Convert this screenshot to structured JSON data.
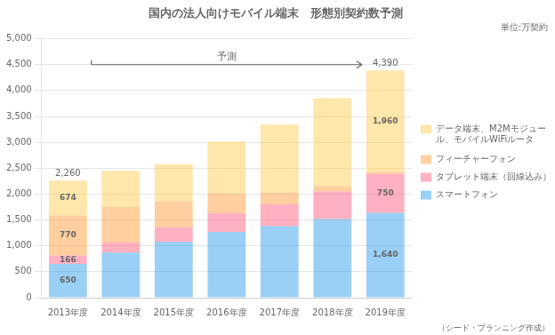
{
  "chart_data": {
    "type": "bar",
    "stacked": true,
    "title": "国内の法人向けモバイル端末　形態別契約数予測",
    "subtitle": "単位:万契約",
    "categories": [
      "2013年度",
      "2014年度",
      "2015年度",
      "2016年度",
      "2017年度",
      "2018年度",
      "2019年度"
    ],
    "series": [
      {
        "name": "スマートフォン",
        "values": [
          650,
          870,
          1080,
          1270,
          1380,
          1520,
          1640
        ],
        "value_labels": [
          "650",
          null,
          null,
          null,
          null,
          null,
          "1,640"
        ]
      },
      {
        "name": "タブレット端末（回線込み）",
        "values": [
          166,
          200,
          280,
          360,
          420,
          530,
          750
        ],
        "value_labels": [
          "166",
          null,
          null,
          null,
          null,
          null,
          "750"
        ]
      },
      {
        "name": "フィーチャーフォン",
        "values": [
          770,
          680,
          500,
          380,
          230,
          100,
          40
        ],
        "value_labels": [
          "770",
          null,
          null,
          null,
          null,
          null,
          null
        ]
      },
      {
        "name": "データ端末、M2Mモジュー\nル、モバイルWiFiルータ",
        "values": [
          674,
          700,
          720,
          1000,
          1310,
          1700,
          1960
        ],
        "value_labels": [
          "674",
          null,
          null,
          null,
          null,
          null,
          "1,960"
        ]
      }
    ],
    "ylim": [
      0,
      5000
    ],
    "yticks": [
      0,
      500,
      {
        "value": 1000,
        "label": "1,000"
      },
      {
        "value": 1500,
        "label": "1,500"
      },
      {
        "value": 2000,
        "label": "2,000"
      },
      {
        "value": 2500,
        "label": "2,500"
      },
      {
        "value": 3000,
        "label": "3,000"
      },
      {
        "value": 3500,
        "label": "3,500"
      },
      {
        "value": 4000,
        "label": "4,000"
      },
      {
        "value": 4500,
        "label": "4,500"
      },
      {
        "value": 5000,
        "label": "5,000"
      }
    ],
    "grid": true,
    "legend": "right",
    "annotations": [
      {
        "text": "2,260",
        "value": 2260,
        "category": "2013年度"
      },
      {
        "text": "4,390",
        "value": 4390,
        "category": "2019年度"
      },
      {
        "text": "予測",
        "from": "2013年度",
        "to": "2019年度"
      },
      {
        "text": "（シード・プランニング作成）"
      }
    ]
  }
}
